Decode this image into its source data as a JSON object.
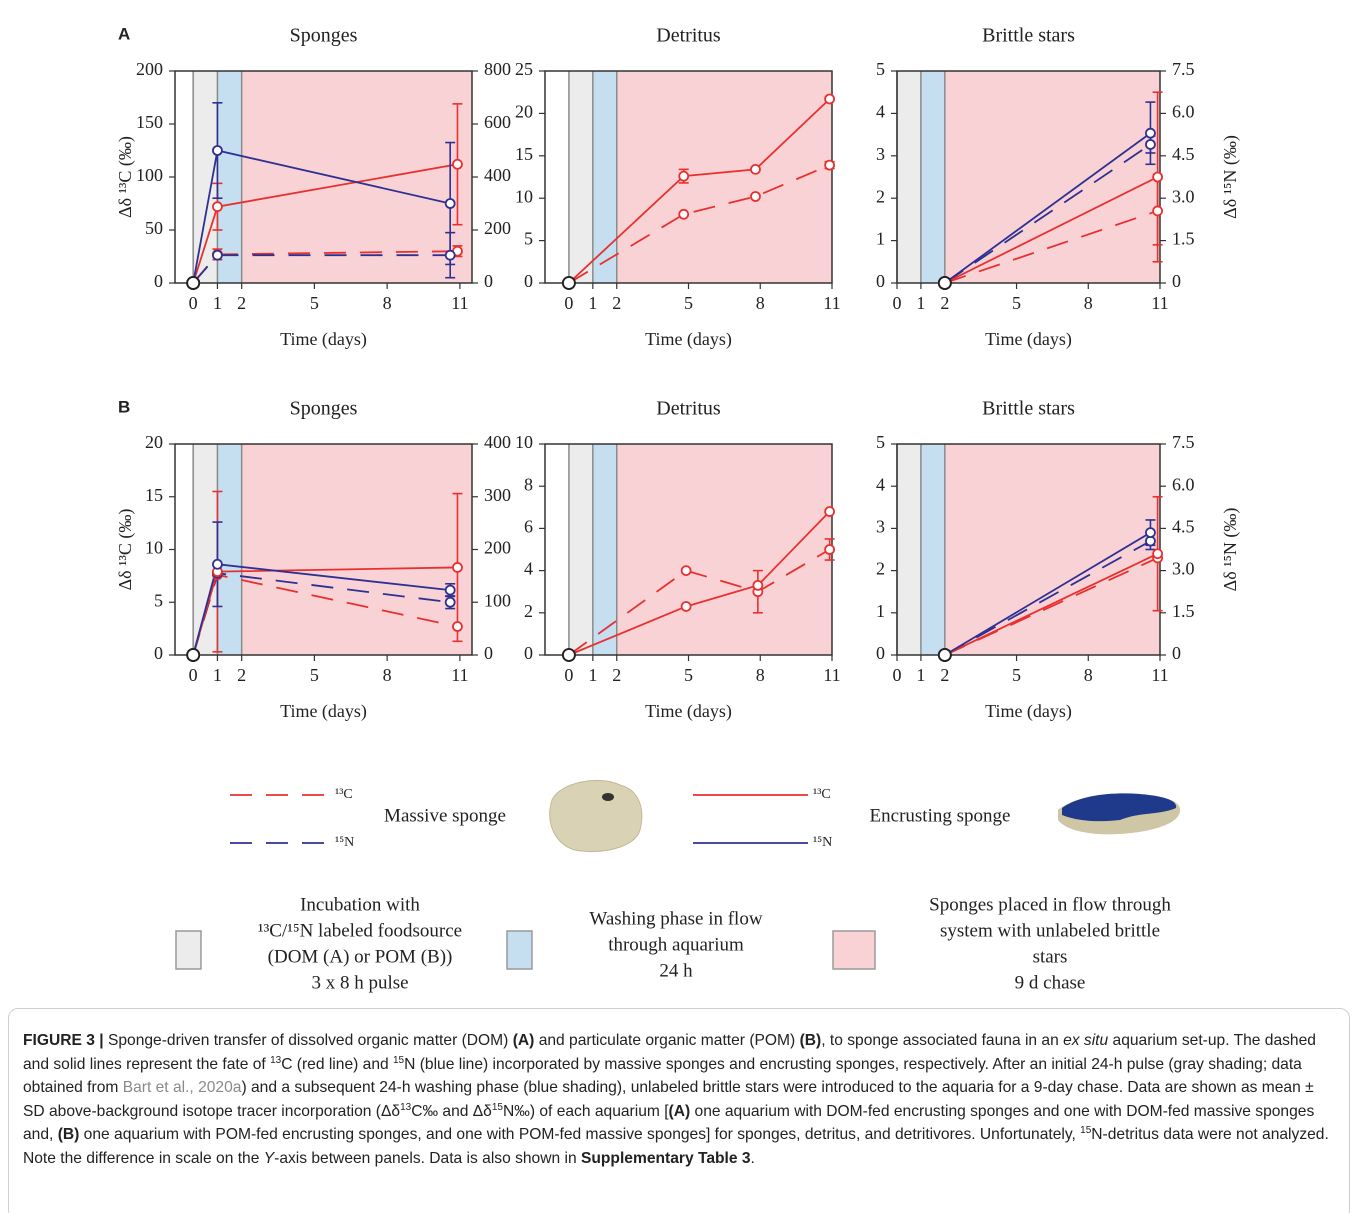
{
  "panels": [
    "A",
    "B"
  ],
  "chart_data": [
    {
      "type": "line",
      "title": "Sponges",
      "xlabel": "Time (days)",
      "ylabel": "Δδ ¹³C (‰)",
      "xlim": [
        -0.75,
        11.5
      ],
      "xticks": [
        0,
        1,
        2,
        5,
        8,
        11
      ],
      "ylim": [
        0,
        200
      ],
      "yticks": [
        0,
        50,
        100,
        150,
        200
      ],
      "y2lim": [
        0,
        800
      ],
      "y2ticks": [
        0,
        200,
        400,
        600,
        800
      ],
      "series": [
        {
          "color": "#e8312f",
          "dash": "dashed",
          "x": [
            0,
            1,
            10.9
          ],
          "values": [
            0,
            27,
            30
          ],
          "errors": [
            null,
            5,
            5
          ]
        },
        {
          "color": "#2e3192",
          "dash": "dashed",
          "axis": "y2",
          "x": [
            0,
            1,
            10.6
          ],
          "values": [
            0,
            105,
            105
          ],
          "errors": [
            null,
            null,
            85
          ]
        },
        {
          "color": "#e8312f",
          "dash": "solid",
          "x": [
            0,
            1,
            10.9
          ],
          "values": [
            0,
            72,
            112
          ],
          "errors": [
            null,
            22,
            57
          ]
        },
        {
          "color": "#2e3192",
          "dash": "solid",
          "axis": "y2",
          "x": [
            0,
            1,
            10.6
          ],
          "values": [
            0,
            500,
            300
          ],
          "errors": [
            null,
            180,
            230
          ]
        }
      ]
    },
    {
      "type": "line",
      "title": "Detritus",
      "xlabel": "Time (days)",
      "xlim": [
        -1,
        11
      ],
      "xticks": [
        0,
        1,
        2,
        5,
        8,
        11
      ],
      "ylim": [
        0,
        25
      ],
      "yticks": [
        0,
        5,
        10,
        15,
        20,
        25
      ],
      "series": [
        {
          "color": "#e8312f",
          "dash": "dashed",
          "x": [
            0,
            4.8,
            7.8,
            10.9
          ],
          "values": [
            0,
            8.1,
            10.2,
            13.9
          ],
          "errors": [
            null,
            null,
            null,
            0.4
          ]
        },
        {
          "color": "#e8312f",
          "dash": "solid",
          "x": [
            0,
            4.8,
            7.8,
            10.9
          ],
          "values": [
            0,
            12.6,
            13.4,
            21.7
          ],
          "errors": [
            null,
            0.8,
            null,
            null
          ]
        }
      ]
    },
    {
      "type": "line",
      "title": "Brittle stars",
      "xlabel": "Time (days)",
      "y2label": "Δδ ¹⁵N (‰)",
      "xlim": [
        0,
        11
      ],
      "xticks": [
        0,
        1,
        2,
        5,
        8,
        11
      ],
      "ylim": [
        0,
        5
      ],
      "yticks": [
        0,
        1,
        2,
        3,
        4,
        5
      ],
      "y2lim": [
        0,
        7.5
      ],
      "y2ticks": [
        0,
        1.5,
        {
          "value": 3,
          "label": "3.0"
        },
        4.5,
        {
          "value": 6,
          "label": "6.0"
        },
        7.5
      ],
      "series": [
        {
          "color": "#e8312f",
          "dash": "dashed",
          "x": [
            2,
            10.9
          ],
          "values": [
            0,
            1.7
          ],
          "errors": [
            null,
            0.8
          ]
        },
        {
          "color": "#2e3192",
          "dash": "dashed",
          "axis": "y2",
          "x": [
            2,
            10.6
          ],
          "values": [
            0,
            4.9
          ],
          "errors": [
            null,
            0.3
          ]
        },
        {
          "color": "#e8312f",
          "dash": "solid",
          "x": [
            2,
            10.9
          ],
          "values": [
            0,
            2.5
          ],
          "errors": [
            null,
            2
          ]
        },
        {
          "color": "#2e3192",
          "dash": "solid",
          "axis": "y2",
          "x": [
            2,
            10.6
          ],
          "values": [
            0,
            5.3
          ],
          "errors": [
            null,
            1.1
          ]
        }
      ]
    },
    {
      "type": "line",
      "title": "Sponges",
      "xlabel": "Time (days)",
      "ylabel": "Δδ ¹³C (‰)",
      "xlim": [
        -0.75,
        11.5
      ],
      "xticks": [
        0,
        1,
        2,
        5,
        8,
        11
      ],
      "ylim": [
        0,
        20
      ],
      "yticks": [
        0,
        5,
        10,
        15,
        20
      ],
      "y2lim": [
        0,
        400
      ],
      "y2ticks": [
        0,
        100,
        200,
        300,
        400
      ],
      "series": [
        {
          "color": "#e8312f",
          "dash": "dashed",
          "x": [
            0,
            1,
            10.9
          ],
          "values": [
            0,
            7.6,
            2.7
          ]
        },
        {
          "color": "#2e3192",
          "dash": "dashed",
          "axis": "y2",
          "x": [
            0,
            1,
            10.6
          ],
          "values": [
            0,
            155,
            100
          ],
          "errors": [
            null,
            null,
            12
          ]
        },
        {
          "color": "#e8312f",
          "dash": "solid",
          "x": [
            0,
            1,
            10.9
          ],
          "values": [
            0,
            7.9,
            8.3
          ],
          "errors": [
            null,
            7.6,
            7
          ]
        },
        {
          "color": "#2e3192",
          "dash": "solid",
          "axis": "y2",
          "x": [
            0,
            1,
            10.6
          ],
          "values": [
            0,
            172,
            123
          ],
          "errors": [
            null,
            80,
            12
          ]
        }
      ]
    },
    {
      "type": "line",
      "title": "Detritus",
      "xlabel": "Time (days)",
      "xlim": [
        -1,
        11
      ],
      "xticks": [
        0,
        1,
        2,
        5,
        8,
        11
      ],
      "ylim": [
        0,
        10
      ],
      "yticks": [
        0,
        2,
        4,
        6,
        8,
        10
      ],
      "series": [
        {
          "color": "#e8312f",
          "dash": "dashed",
          "x": [
            0,
            4.9,
            7.9,
            10.9
          ],
          "values": [
            0,
            4,
            3,
            5
          ],
          "errors": [
            null,
            null,
            1,
            0.5
          ]
        },
        {
          "color": "#e8312f",
          "dash": "solid",
          "x": [
            0,
            4.9,
            7.9,
            10.9
          ],
          "values": [
            0,
            2.3,
            3.3,
            6.8
          ]
        }
      ]
    },
    {
      "type": "line",
      "title": "Brittle stars",
      "xlabel": "Time (days)",
      "y2label": "Δδ ¹⁵N (‰)",
      "xlim": [
        0,
        11
      ],
      "xticks": [
        0,
        1,
        2,
        5,
        8,
        11
      ],
      "ylim": [
        0,
        5
      ],
      "yticks": [
        0,
        1,
        2,
        3,
        4,
        5
      ],
      "y2lim": [
        0,
        7.5
      ],
      "y2ticks": [
        0,
        1.5,
        {
          "value": 3,
          "label": "3.0"
        },
        4.5,
        {
          "value": 6,
          "label": "6.0"
        },
        7.5
      ],
      "series": [
        {
          "color": "#e8312f",
          "dash": "dashed",
          "x": [
            2,
            10.9
          ],
          "values": [
            0,
            2.3
          ]
        },
        {
          "color": "#2e3192",
          "dash": "dashed",
          "axis": "y2",
          "x": [
            2,
            10.6
          ],
          "values": [
            0,
            4.05
          ],
          "errors": [
            null,
            0.3
          ]
        },
        {
          "color": "#e8312f",
          "dash": "solid",
          "x": [
            2,
            10.9
          ],
          "values": [
            0,
            2.4
          ],
          "errors": [
            null,
            1.35
          ]
        },
        {
          "color": "#2e3192",
          "dash": "solid",
          "axis": "y2",
          "x": [
            2,
            10.6
          ],
          "values": [
            0,
            4.35
          ],
          "errors": [
            null,
            0.45
          ]
        }
      ]
    }
  ],
  "phases": [
    {
      "start": 0,
      "color": "#ececec",
      "lines": [
        "Incubation with",
        "¹³C/¹⁵N labeled foodsource",
        "(DOM (A) or POM (B))",
        "3 x 8 h pulse"
      ]
    },
    {
      "start": 1,
      "color": "#c5def0",
      "lines": [
        "Washing phase in flow",
        "through aquarium",
        "24 h"
      ]
    },
    {
      "start": 2,
      "color": "#f9d2d6",
      "lines": [
        "Sponges placed in flow through",
        "system with unlabeled brittle",
        "stars",
        "9 d chase"
      ]
    }
  ],
  "legend": [
    {
      "label": "Massive sponge",
      "dash": "dashed",
      "entries": [
        {
          "name": "¹³C",
          "color": "#e8312f"
        },
        {
          "name": "¹⁵N",
          "color": "#2e3192"
        }
      ]
    },
    {
      "label": "Encrusting sponge",
      "dash": "solid",
      "entries": [
        {
          "name": "¹³C",
          "color": "#e8312f"
        },
        {
          "name": "¹⁵N",
          "color": "#2e3192"
        }
      ]
    }
  ],
  "caption": [
    {
      "text": "FIGURE 3 | ",
      "style": "bold"
    },
    "Sponge-driven transfer of dissolved organic matter (DOM) ",
    {
      "text": "(A)",
      "style": "bold"
    },
    " and particulate organic matter (POM) ",
    {
      "text": "(B)",
      "style": "bold"
    },
    ", to sponge associated fauna in an ",
    {
      "text": "ex situ",
      "style": "italic"
    },
    " aquarium set-up. The dashed and solid lines represent the fate of ",
    {
      "text": "13",
      "style": "sup"
    },
    "C (red line) and ",
    {
      "text": "15",
      "style": "sup"
    },
    "N (blue line) incorporated by massive sponges and encrusting sponges, respectively. After an initial 24-h pulse (gray shading; data obtained from ",
    {
      "text": "Bart et al., 2020a",
      "style": "link"
    },
    ") and a subsequent 24-h washing phase (blue shading), unlabeled brittle stars were introduced to the aquaria for a 9-day chase. Data are shown as mean ± SD above-background isotope tracer incorporation (Δδ",
    {
      "text": "13",
      "style": "sup"
    },
    "C‰ and Δδ",
    {
      "text": "15",
      "style": "sup"
    },
    "N‰) of each aquarium [",
    {
      "text": "(A)",
      "style": "bold"
    },
    " one aquarium with DOM-fed encrusting sponges and one with DOM-fed massive sponges and, ",
    {
      "text": "(B)",
      "style": "bold"
    },
    " one aquarium with POM-fed encrusting sponges, and one with POM-fed massive sponges] for sponges, detritus, and detritivores. Unfortunately, ",
    {
      "text": "15",
      "style": "sup"
    },
    "N-detritus data were not analyzed. Note the difference in scale on the ",
    {
      "text": "Y",
      "style": "italic"
    },
    "-axis between panels. Data is also shown in ",
    {
      "text": "Supplementary Table 3",
      "style": "bold"
    },
    "."
  ]
}
